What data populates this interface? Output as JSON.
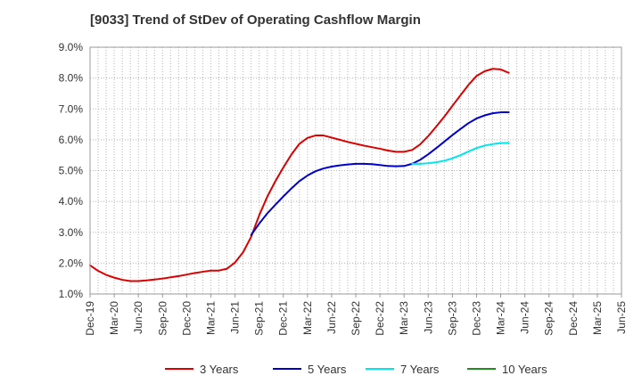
{
  "chart_data": {
    "type": "line",
    "title": "[9033]  Trend of StDev of Operating Cashflow Margin",
    "xlabel": "",
    "ylabel": "",
    "ylim": [
      0.01,
      0.09
    ],
    "y_ticks": [
      0.01,
      0.02,
      0.03,
      0.04,
      0.05,
      0.06,
      0.07,
      0.08,
      0.09
    ],
    "y_tick_labels": [
      "1.0%",
      "2.0%",
      "3.0%",
      "4.0%",
      "5.0%",
      "6.0%",
      "7.0%",
      "8.0%",
      "9.0%"
    ],
    "x_tick_labels": [
      "Dec-19",
      "Mar-20",
      "Jun-20",
      "Sep-20",
      "Dec-20",
      "Mar-21",
      "Jun-21",
      "Sep-21",
      "Dec-21",
      "Mar-22",
      "Jun-22",
      "Sep-22",
      "Dec-22",
      "Mar-23",
      "Jun-23",
      "Sep-23",
      "Dec-23",
      "Mar-24",
      "Jun-24",
      "Sep-24",
      "Dec-24",
      "Mar-25",
      "Jun-25"
    ],
    "x_range_months": [
      0,
      66
    ],
    "grid": true,
    "legend_position": "bottom",
    "series": [
      {
        "name": "3 Years",
        "color": "#dd0000",
        "x": [
          0,
          1,
          2,
          3,
          4,
          5,
          6,
          7,
          8,
          9,
          10,
          11,
          12,
          13,
          14,
          15,
          16,
          17,
          18,
          19,
          20,
          21,
          22,
          23,
          24,
          25,
          26,
          27,
          28,
          29,
          30,
          31,
          32,
          33,
          34,
          35,
          36,
          37,
          38,
          39,
          40,
          41,
          42,
          43,
          44,
          45,
          46,
          47,
          48,
          49,
          50,
          51,
          52,
          53,
          54,
          55,
          56,
          57,
          58
        ],
        "values": [
          0.0193,
          0.0175,
          0.0162,
          0.0153,
          0.0146,
          0.0142,
          0.0142,
          0.0144,
          0.0147,
          0.015,
          0.0154,
          0.0158,
          0.0163,
          0.0168,
          0.0172,
          0.0176,
          0.0176,
          0.0182,
          0.0202,
          0.0235,
          0.0285,
          0.0355,
          0.0415,
          0.0465,
          0.051,
          0.0552,
          0.0587,
          0.0606,
          0.0614,
          0.0614,
          0.0607,
          0.06,
          0.0593,
          0.0587,
          0.0581,
          0.0576,
          0.0571,
          0.0565,
          0.0561,
          0.0561,
          0.0567,
          0.0585,
          0.0612,
          0.0643,
          0.0675,
          0.071,
          0.0744,
          0.0778,
          0.0807,
          0.0822,
          0.083,
          0.0828,
          0.0817,
          null,
          null,
          null,
          null,
          null,
          null
        ]
      },
      {
        "name": "5 Years",
        "color": "#0000cc",
        "x": [
          20,
          21,
          22,
          23,
          24,
          25,
          26,
          27,
          28,
          29,
          30,
          31,
          32,
          33,
          34,
          35,
          36,
          37,
          38,
          39,
          40,
          41,
          42,
          43,
          44,
          45,
          46,
          47,
          48,
          49,
          50,
          51,
          52
        ],
        "values": [
          0.0291,
          0.0328,
          0.0361,
          0.0389,
          0.0416,
          0.0442,
          0.0466,
          0.0484,
          0.0498,
          0.0507,
          0.0513,
          0.0517,
          0.052,
          0.0522,
          0.0522,
          0.0521,
          0.0518,
          0.0515,
          0.0514,
          0.0515,
          0.0522,
          0.0535,
          0.0553,
          0.0573,
          0.0594,
          0.0615,
          0.0635,
          0.0654,
          0.0669,
          0.0679,
          0.0686,
          0.0689,
          0.0689
        ]
      },
      {
        "name": "7 Years",
        "color": "#00e5ee",
        "x": [
          40,
          41,
          42,
          43,
          44,
          45,
          46,
          47,
          48,
          49,
          50,
          51,
          52
        ],
        "values": [
          0.0522,
          0.0522,
          0.0524,
          0.0527,
          0.0532,
          0.054,
          0.055,
          0.0562,
          0.0573,
          0.0581,
          0.0586,
          0.0589,
          0.059
        ]
      },
      {
        "name": "10 Years",
        "color": "#228b22",
        "x": [],
        "values": []
      }
    ]
  }
}
